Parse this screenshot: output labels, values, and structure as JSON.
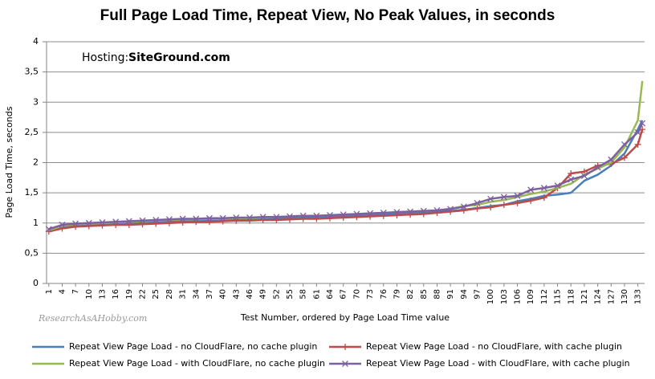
{
  "chart_data": {
    "type": "line",
    "title": "Full Page Load Time, Repeat View, No Peak Values, in seconds",
    "annotation_label": "Hosting:",
    "annotation_value": "SiteGround.com",
    "watermark": "ResearchAsAHobby.com",
    "x_label": "Test Number, ordered by Page Load Time value",
    "y_label": "Page Load Time, seconds",
    "x": [
      1,
      4,
      7,
      10,
      13,
      16,
      19,
      22,
      25,
      28,
      31,
      34,
      37,
      40,
      43,
      46,
      49,
      52,
      55,
      58,
      61,
      64,
      67,
      70,
      73,
      76,
      79,
      82,
      85,
      88,
      91,
      94,
      97,
      100,
      103,
      106,
      109,
      112,
      115,
      118,
      121,
      124,
      127,
      130,
      133,
      134
    ],
    "xlim": [
      0.5,
      134.5
    ],
    "xticks": [
      1,
      4,
      7,
      10,
      13,
      16,
      19,
      22,
      25,
      28,
      31,
      34,
      37,
      40,
      43,
      46,
      49,
      52,
      55,
      58,
      61,
      64,
      67,
      70,
      73,
      76,
      79,
      82,
      85,
      88,
      91,
      94,
      97,
      100,
      103,
      106,
      109,
      112,
      115,
      118,
      121,
      124,
      127,
      130,
      133
    ],
    "ylim": [
      0,
      4
    ],
    "yticks": [
      0,
      {
        "value": 0.5,
        "label": "0,5"
      },
      1,
      {
        "value": 1.5,
        "label": "1,5"
      },
      2,
      {
        "value": 2.5,
        "label": "2,5"
      },
      3,
      {
        "value": 3.5,
        "label": "3,5"
      },
      4
    ],
    "grid": true,
    "legend": "bottom",
    "series": [
      {
        "name": "Repeat View Page Load - no CloudFlare, no cache plugin",
        "color": "#4a7ebb",
        "marker": "none",
        "values": [
          0.87,
          0.93,
          0.96,
          0.97,
          0.98,
          0.99,
          1.0,
          1.01,
          1.02,
          1.03,
          1.04,
          1.04,
          1.05,
          1.05,
          1.06,
          1.06,
          1.07,
          1.08,
          1.09,
          1.1,
          1.1,
          1.11,
          1.12,
          1.13,
          1.14,
          1.15,
          1.16,
          1.17,
          1.18,
          1.19,
          1.2,
          1.22,
          1.25,
          1.28,
          1.3,
          1.36,
          1.4,
          1.45,
          1.47,
          1.5,
          1.7,
          1.8,
          1.95,
          2.15,
          2.55,
          2.7
        ]
      },
      {
        "name": "Repeat View Page Load - no CloudFlare, with cache plugin",
        "color": "#be4b48",
        "marker": "plus",
        "values": [
          0.86,
          0.91,
          0.94,
          0.95,
          0.96,
          0.97,
          0.97,
          0.98,
          0.99,
          1.0,
          1.01,
          1.02,
          1.02,
          1.03,
          1.04,
          1.04,
          1.05,
          1.05,
          1.06,
          1.07,
          1.07,
          1.08,
          1.09,
          1.1,
          1.11,
          1.12,
          1.13,
          1.14,
          1.15,
          1.17,
          1.19,
          1.21,
          1.24,
          1.26,
          1.3,
          1.33,
          1.37,
          1.42,
          1.58,
          1.82,
          1.85,
          1.95,
          1.98,
          2.08,
          2.3,
          2.55
        ]
      },
      {
        "name": "Repeat View Page Load - with CloudFlare, no cache plugin",
        "color": "#98b954",
        "marker": "none",
        "values": [
          0.88,
          0.95,
          0.98,
          0.99,
          1.0,
          1.01,
          1.02,
          1.03,
          1.04,
          1.05,
          1.06,
          1.06,
          1.07,
          1.07,
          1.08,
          1.08,
          1.09,
          1.1,
          1.11,
          1.12,
          1.12,
          1.13,
          1.14,
          1.15,
          1.16,
          1.17,
          1.18,
          1.19,
          1.2,
          1.21,
          1.24,
          1.28,
          1.3,
          1.35,
          1.38,
          1.43,
          1.48,
          1.52,
          1.58,
          1.65,
          1.8,
          1.9,
          2.0,
          2.25,
          2.7,
          3.35
        ]
      },
      {
        "name": "Repeat View Page Load - with CloudFlare, with cache plugin",
        "color": "#7d60a0",
        "marker": "cross",
        "values": [
          0.9,
          0.97,
          0.99,
          1.0,
          1.01,
          1.02,
          1.03,
          1.04,
          1.05,
          1.06,
          1.07,
          1.07,
          1.08,
          1.08,
          1.09,
          1.09,
          1.1,
          1.1,
          1.11,
          1.12,
          1.12,
          1.13,
          1.14,
          1.15,
          1.16,
          1.17,
          1.18,
          1.19,
          1.2,
          1.21,
          1.23,
          1.27,
          1.33,
          1.4,
          1.43,
          1.45,
          1.55,
          1.58,
          1.62,
          1.72,
          1.78,
          1.92,
          2.05,
          2.3,
          2.5,
          2.65
        ]
      }
    ]
  }
}
